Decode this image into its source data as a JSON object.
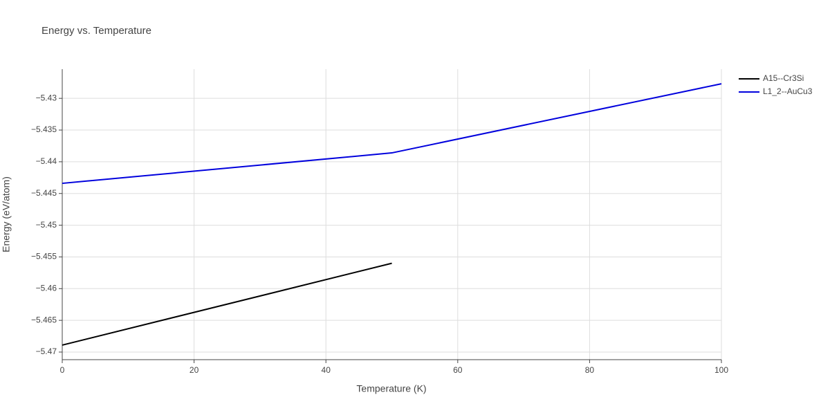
{
  "chart_data": {
    "type": "line",
    "title": "Energy vs. Temperature",
    "x_label": "Temperature (K)",
    "y_label": "Energy (eV/atom)",
    "xlim": [
      0,
      100
    ],
    "xticks": [
      0,
      20,
      40,
      60,
      80,
      100
    ],
    "ylim": [
      -5.4712,
      -5.4254
    ],
    "yticks": [
      {
        "value": -5.47,
        "label": "−5.47"
      },
      {
        "value": -5.465,
        "label": "−5.465"
      },
      {
        "value": -5.46,
        "label": "−5.46"
      },
      {
        "value": -5.455,
        "label": "−5.455"
      },
      {
        "value": -5.45,
        "label": "−5.45"
      },
      {
        "value": -5.445,
        "label": "−5.445"
      },
      {
        "value": -5.44,
        "label": "−5.44"
      },
      {
        "value": -5.435,
        "label": "−5.435"
      },
      {
        "value": -5.43,
        "label": "−5.43"
      }
    ],
    "grid": true,
    "legend": "right",
    "series": [
      {
        "name": "A15--Cr3Si",
        "color": "#000000",
        "x": [
          0,
          50
        ],
        "values": [
          -5.4689,
          -5.456
        ]
      },
      {
        "name": "L1_2--AuCu3",
        "color": "#0000dd",
        "x": [
          0,
          50,
          100
        ],
        "values": [
          -5.4434,
          -5.4386,
          -5.4277
        ]
      }
    ]
  }
}
